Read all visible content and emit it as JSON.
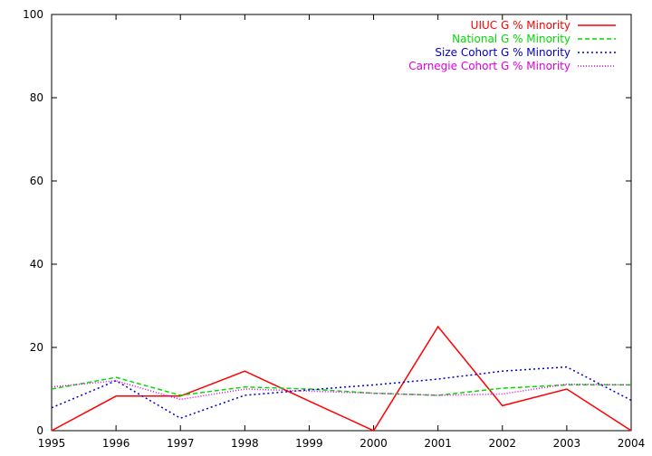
{
  "chart_data": {
    "type": "line",
    "x": [
      1995,
      1996,
      1997,
      1998,
      1999,
      2000,
      2001,
      2002,
      2003,
      2004
    ],
    "xlim": [
      1995,
      2004
    ],
    "ylim": [
      0,
      100
    ],
    "xticks": [
      "1995",
      "1996",
      "1997",
      "1998",
      "1999",
      "2000",
      "2001",
      "2002",
      "2003",
      "2004"
    ],
    "yticks": [
      "0",
      "20",
      "40",
      "60",
      "80",
      "100"
    ],
    "legend_position": "top-right",
    "grid": false,
    "series": [
      {
        "name": "UIUC G % Minority",
        "color": "#ff0000",
        "dash": "solid",
        "values": [
          0,
          8.3,
          8.3,
          14.3,
          7.1,
          0,
          25.0,
          6.0,
          10.0,
          0
        ]
      },
      {
        "name": "National G % Minority",
        "color": "#00dd00",
        "dash": "dashed",
        "values": [
          10.0,
          12.8,
          8.5,
          10.5,
          10.0,
          9.0,
          8.5,
          10.2,
          11.0,
          11.0
        ]
      },
      {
        "name": "Size Cohort G % Minority",
        "color": "#0000cc",
        "dash": "dotted",
        "values": [
          5.5,
          12.0,
          3.0,
          8.5,
          9.8,
          11.0,
          12.4,
          14.3,
          15.3,
          7.3
        ]
      },
      {
        "name": "Carnegie Cohort G % Minority",
        "color": "#dd00dd",
        "dash": "finedot",
        "values": [
          10.5,
          12.0,
          7.5,
          10.0,
          9.5,
          9.0,
          8.5,
          8.8,
          11.2,
          11.0
        ]
      }
    ]
  }
}
